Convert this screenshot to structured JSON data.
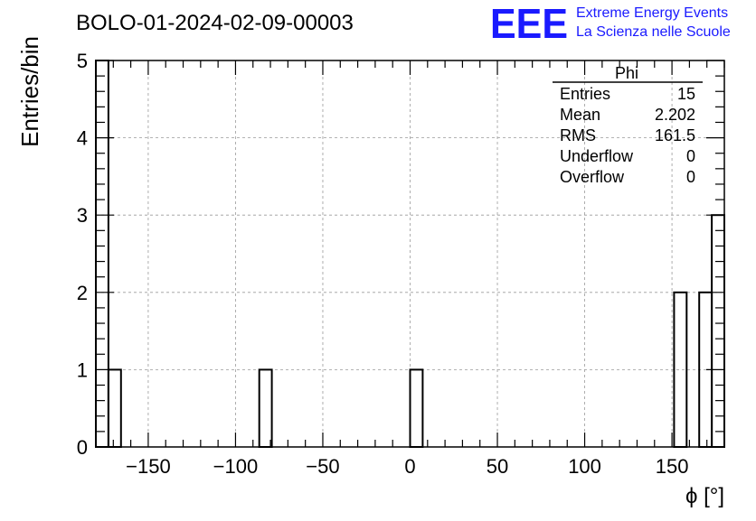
{
  "chart_data": {
    "type": "bar",
    "title": "BOLO-01-2024-02-09-00003",
    "xlabel": "ϕ [°]",
    "ylabel": "Entries/bin",
    "xlim": [
      -180,
      180
    ],
    "ylim": [
      0,
      5
    ],
    "bin_width": 7.2,
    "xticks": [
      -150,
      -100,
      -50,
      0,
      50,
      100,
      150
    ],
    "xtick_labels": [
      "−150",
      "−100",
      "−50",
      "0",
      "50",
      "100",
      "150"
    ],
    "yticks": [
      0,
      1,
      2,
      3,
      4,
      5
    ],
    "ytick_labels": [
      "0",
      "1",
      "2",
      "3",
      "4",
      "5"
    ],
    "grid": true,
    "bins": [
      {
        "x0": -180.0,
        "x1": -172.8,
        "value": 5
      },
      {
        "x0": -172.8,
        "x1": -165.6,
        "value": 1
      },
      {
        "x0": -86.4,
        "x1": -79.2,
        "value": 1
      },
      {
        "x0": 0.0,
        "x1": 7.2,
        "value": 1
      },
      {
        "x0": 151.2,
        "x1": 158.4,
        "value": 2
      },
      {
        "x0": 165.6,
        "x1": 172.8,
        "value": 2
      },
      {
        "x0": 172.8,
        "x1": 180.0,
        "value": 3
      }
    ],
    "color": "#000000",
    "stats_box": {
      "title": "Phi",
      "placement": "top-right",
      "rows": [
        {
          "label": "Entries",
          "value": "15"
        },
        {
          "label": "Mean",
          "value": "2.202"
        },
        {
          "label": "RMS",
          "value": "161.5"
        },
        {
          "label": "Underflow",
          "value": "0"
        },
        {
          "label": "Overflow",
          "value": "0"
        }
      ]
    }
  },
  "logo": {
    "mark": "EEE",
    "line1": "Extreme Energy Events",
    "line2": "La Scienza nelle Scuole",
    "color": "#1a1aff"
  }
}
